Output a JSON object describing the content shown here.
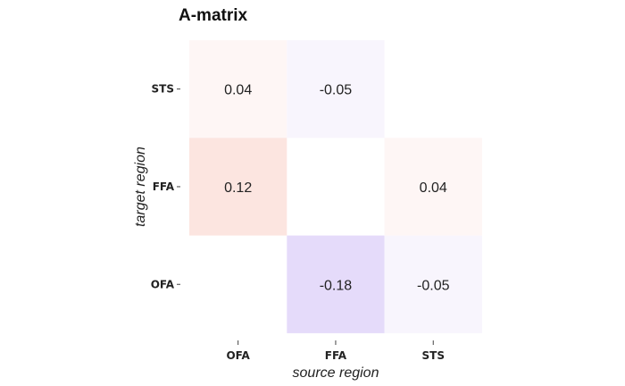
{
  "chart_data": {
    "type": "heatmap",
    "title": "A-matrix",
    "xlabel": "source region",
    "ylabel": "target region",
    "x_categories": [
      "OFA",
      "FFA",
      "STS"
    ],
    "y_categories": [
      "STS",
      "FFA",
      "OFA"
    ],
    "cells": [
      {
        "source": "OFA",
        "target": "STS",
        "value": 0.04,
        "label": "0.04"
      },
      {
        "source": "FFA",
        "target": "STS",
        "value": -0.05,
        "label": "-0.05"
      },
      {
        "source": "OFA",
        "target": "FFA",
        "value": 0.12,
        "label": "0.12"
      },
      {
        "source": "STS",
        "target": "FFA",
        "value": 0.04,
        "label": "0.04"
      },
      {
        "source": "FFA",
        "target": "OFA",
        "value": -0.18,
        "label": "-0.18"
      },
      {
        "source": "STS",
        "target": "OFA",
        "value": -0.05,
        "label": "-0.05"
      }
    ],
    "colors": {
      "positive": "#e8502a",
      "negative": "#8a5ce6",
      "empty": "#ffffff"
    },
    "grid": false,
    "legend": "none"
  }
}
